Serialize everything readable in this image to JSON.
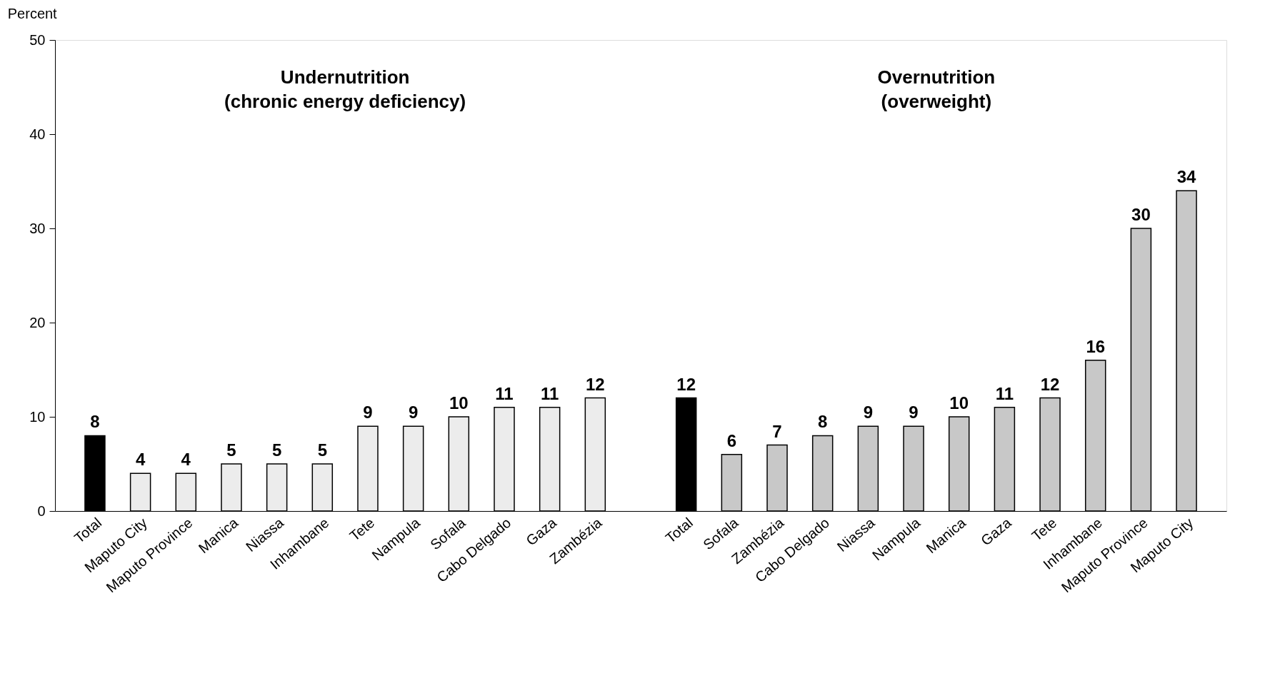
{
  "chart_data": {
    "type": "bar",
    "ylabel": "Percent",
    "categories": [
      "Total",
      "Maputo City",
      "Maputo Province",
      "Manica",
      "Niassa",
      "Inhambane",
      "Tete",
      "Nampula",
      "Sofala",
      "Cabo Delgado",
      "Gaza",
      "Zambézia",
      null,
      "Total",
      "Sofala",
      "Zambézia",
      "Cabo Delgado",
      "Niassa",
      "Nampula",
      "Manica",
      "Gaza",
      "Tete",
      "Inhambane",
      "Maputo Province",
      "Maputo City"
    ],
    "values": [
      8,
      4,
      4,
      5,
      5,
      5,
      9,
      9,
      10,
      11,
      11,
      12,
      null,
      12,
      6,
      7,
      8,
      9,
      9,
      10,
      11,
      12,
      16,
      30,
      34
    ],
    "colors": [
      "#000000",
      "#ececec",
      "#ececec",
      "#ececec",
      "#ececec",
      "#ececec",
      "#ececec",
      "#ececec",
      "#ececec",
      "#ececec",
      "#ececec",
      "#ececec",
      "#ffffff",
      "#000000",
      "#c8c8c8",
      "#c8c8c8",
      "#c8c8c8",
      "#c8c8c8",
      "#c8c8c8",
      "#c8c8c8",
      "#c8c8c8",
      "#c8c8c8",
      "#c8c8c8",
      "#c8c8c8",
      "#c8c8c8"
    ],
    "annotations": [
      "Undernutrition\n(chronic energy deficiency)",
      "Overnutrition\n(overweight)"
    ],
    "ylim": [
      0,
      50
    ],
    "yticks": [
      0,
      10,
      20,
      30,
      40,
      50
    ],
    "data_labels": true,
    "grid": false
  }
}
